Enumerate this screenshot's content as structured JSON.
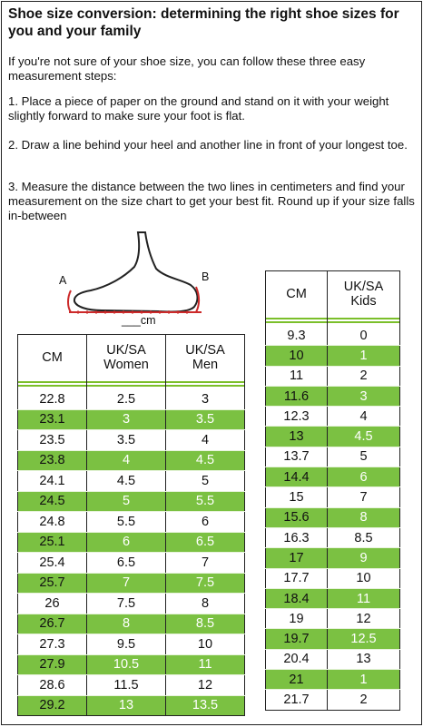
{
  "title": "Shoe size conversion: determining the right shoe sizes for you and your family",
  "intro": "If you're not sure of your shoe size, you can follow these three easy measurement steps:",
  "steps": [
    "1. Place a piece of paper on the ground and stand on it with your weight slightly forward to make sure your foot is flat.",
    "2. Draw a line behind your heel and another line in front of your longest toe.",
    "3. Measure the distance between the two lines in centimeters and find your measurement on the size chart to get your best fit. Round up if your size falls in-between"
  ],
  "illustration": {
    "label_a": "A",
    "label_b": "B",
    "label_cm": "___cm"
  },
  "colors": {
    "accent_green": "#7bc142",
    "border": "#222222"
  },
  "adult_table": {
    "headers": [
      "CM",
      "UK/SA\nWomen",
      "UK/SA\nMen"
    ],
    "rows": [
      [
        "22.8",
        "2.5",
        "3"
      ],
      [
        "23.1",
        "3",
        "3.5"
      ],
      [
        "23.5",
        "3.5",
        "4"
      ],
      [
        "23.8",
        "4",
        "4.5"
      ],
      [
        "24.1",
        "4.5",
        "5"
      ],
      [
        "24.5",
        "5",
        "5.5"
      ],
      [
        "24.8",
        "5.5",
        "6"
      ],
      [
        "25.1",
        "6",
        "6.5"
      ],
      [
        "25.4",
        "6.5",
        "7"
      ],
      [
        "25.7",
        "7",
        "7.5"
      ],
      [
        "26",
        "7.5",
        "8"
      ],
      [
        "26.7",
        "8",
        "8.5"
      ],
      [
        "27.3",
        "9.5",
        "10"
      ],
      [
        "27.9",
        "10.5",
        "11"
      ],
      [
        "28.6",
        "11.5",
        "12"
      ],
      [
        "29.2",
        "13",
        "13.5"
      ]
    ]
  },
  "kids_table": {
    "headers": [
      "CM",
      "UK/SA\nKids"
    ],
    "rows": [
      [
        "9.3",
        "0"
      ],
      [
        "10",
        "1"
      ],
      [
        "11",
        "2"
      ],
      [
        "11.6",
        "3"
      ],
      [
        "12.3",
        "4"
      ],
      [
        "13",
        "4.5"
      ],
      [
        "13.7",
        "5"
      ],
      [
        "14.4",
        "6"
      ],
      [
        "15",
        "7"
      ],
      [
        "15.6",
        "8"
      ],
      [
        "16.3",
        "8.5"
      ],
      [
        "17",
        "9"
      ],
      [
        "17.7",
        "10"
      ],
      [
        "18.4",
        "11"
      ],
      [
        "19",
        "12"
      ],
      [
        "19.7",
        "12.5"
      ],
      [
        "20.4",
        "13"
      ],
      [
        "21",
        "1"
      ],
      [
        "21.7",
        "2"
      ]
    ]
  }
}
